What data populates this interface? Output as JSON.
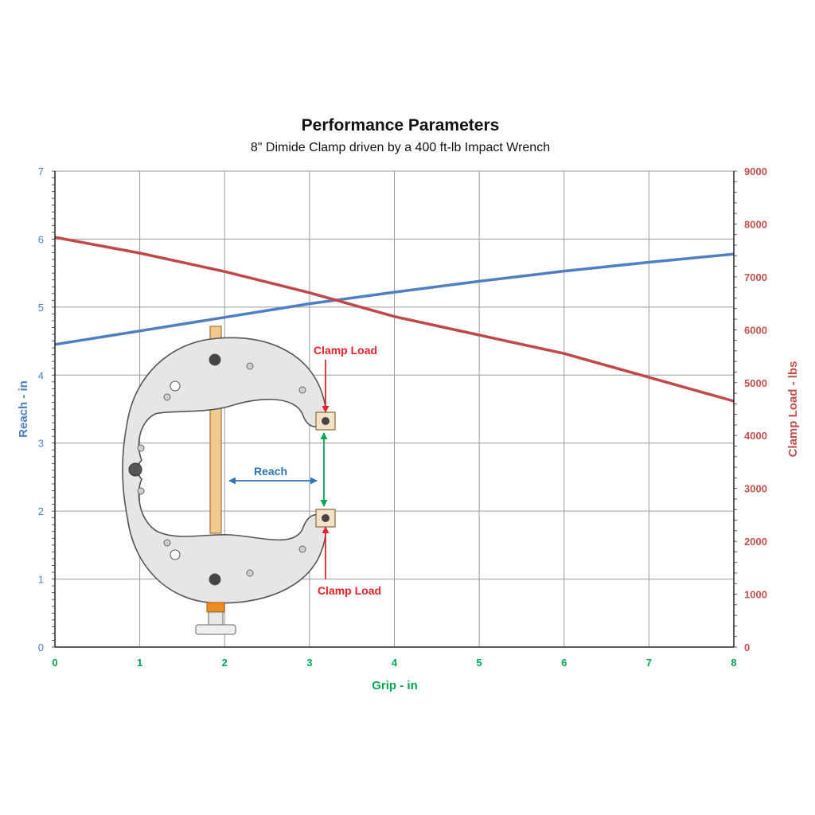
{
  "chart_data": {
    "type": "line",
    "title": "Performance Parameters",
    "subtitle": "8\" Dimide Clamp driven by a 400 ft-lb Impact Wrench",
    "xlabel": "Grip - in",
    "ylabel_left": "Reach - in",
    "ylabel_right": "Clamp Load - lbs",
    "xlim": [
      0,
      8
    ],
    "ylim_left": [
      0,
      7
    ],
    "ylim_right": [
      0,
      9000
    ],
    "x_ticks": [
      "0",
      "1",
      "2",
      "3",
      "4",
      "5",
      "6",
      "7",
      "8"
    ],
    "y_left_ticks": [
      "0",
      "1",
      "2",
      "3",
      "4",
      "5",
      "6",
      "7"
    ],
    "y_right_ticks": [
      "0",
      "1000",
      "2000",
      "3000",
      "4000",
      "5000",
      "6000",
      "7000",
      "8000",
      "9000"
    ],
    "grid": true,
    "colors": {
      "left_axis": "#4f81bd",
      "right_axis": "#c0504d",
      "x_axis": "#00a651",
      "reach_arrow": "#2e75b6",
      "load_arrow": "#e8202a",
      "grip_arrow": "#00a651"
    },
    "series": [
      {
        "name": "Reach",
        "axis": "left",
        "color": "#4f7fc0",
        "x": [
          0,
          1,
          2,
          3,
          4,
          5,
          6,
          7,
          8
        ],
        "y": [
          4.45,
          4.65,
          4.85,
          5.05,
          5.22,
          5.38,
          5.53,
          5.66,
          5.78
        ]
      },
      {
        "name": "Clamp Load",
        "axis": "right",
        "color": "#c04848",
        "x": [
          0,
          1,
          2,
          3,
          4,
          5,
          6,
          7,
          8
        ],
        "y": [
          7750,
          7450,
          7100,
          6700,
          6250,
          5900,
          5550,
          5100,
          4650
        ]
      }
    ],
    "annotations": {
      "clamp_load_top": "Clamp Load",
      "clamp_load_bottom": "Clamp Load",
      "reach": "Reach"
    }
  }
}
